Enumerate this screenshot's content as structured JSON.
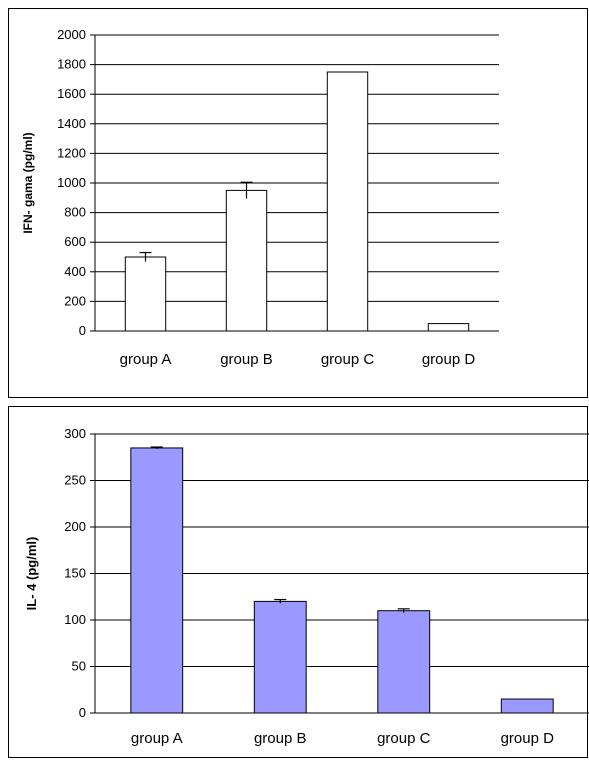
{
  "chart_data": [
    {
      "type": "bar",
      "title": "",
      "xlabel": "",
      "ylabel": "IFN- gama (pg/ml)",
      "ylim": [
        0,
        2000
      ],
      "yticks": [
        0,
        200,
        400,
        600,
        800,
        1000,
        1200,
        1400,
        1600,
        1800,
        2000
      ],
      "categories": [
        "group A",
        "group B",
        "group C",
        "group D"
      ],
      "values": [
        500,
        950,
        1750,
        50
      ],
      "error_bars": [
        30,
        55,
        0,
        0
      ],
      "bar_color": "#ffffff",
      "grid": true
    },
    {
      "type": "bar",
      "title": "",
      "xlabel": "",
      "ylabel": "IL- 4 (pg/ml)",
      "ylim": [
        0,
        300
      ],
      "yticks": [
        0,
        50,
        100,
        150,
        200,
        250,
        300
      ],
      "categories": [
        "group A",
        "group B",
        "group C",
        "group D"
      ],
      "values": [
        285,
        120,
        110,
        15
      ],
      "error_bars": [
        1,
        2,
        2,
        0
      ],
      "bar_color": "#9999ff",
      "grid": true
    }
  ]
}
